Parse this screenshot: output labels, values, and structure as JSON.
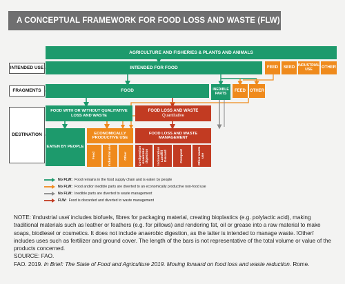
{
  "title": "A CONCEPTUAL FRAMEWORK FOR FOOD LOSS AND WASTE (FLW)",
  "row_labels": {
    "intended_use": "INTENDED USE",
    "fragments": "FRAGMENTS",
    "destination": "DESTINATION"
  },
  "top": "AGRICULTURE AND FISHERIES & PLANTS AND ANIMALS",
  "intended_use": {
    "food": "INTENDED FOR FOOD",
    "feed": "FEED",
    "seed": "SEED",
    "industrial": "INDUSTRIAL USE",
    "other": "OTHER"
  },
  "fragments": {
    "food": "FOOD",
    "inedible": "INEDIBLE PARTS",
    "feed": "FEED",
    "other": "OTHER"
  },
  "destination": {
    "food_with_loss": "FOOD WITH OR WITHOUT QUALITATIVE LOSS AND WASTE",
    "flw_quantitative_title": "FOOD LOSS AND WASTE",
    "flw_quantitative_sub": "Quantitative",
    "eaten": "EATEN BY PEOPLE",
    "productive": "ECONOMICALLY PRODUCTIVE USE",
    "management": "FOOD LOSS AND WASTE MANAGEMENT",
    "productive_items": [
      "Feed",
      "Industrial use",
      "Other"
    ],
    "management_items": [
      "Co-digestion Anaerobic digestion",
      "Incineration Landfill Discard",
      "Compost",
      "Other waste use"
    ]
  },
  "legend": [
    {
      "prefix": "No FLW:",
      "text": "Food remains in the food supply chain and is eaten by people",
      "color": "#1d9a6c"
    },
    {
      "prefix": "No FLW:",
      "text": "Food and/or inedible parts are diverted to an economically productive non-food use",
      "color": "#ef8a1c"
    },
    {
      "prefix": "No FLW:",
      "text": "Inedible parts are diverted to waste management",
      "color": "#8a8a8a"
    },
    {
      "prefix": "FLW:",
      "text": "Food is discarded and diverted to waste management",
      "color": "#c23b22"
    }
  ],
  "note": "NOTE: ïIndustrial useï includes biofuels, fibres for packaging material, creating bioplastics (e.g. polylactic acid), making traditional materials such as leather or feathers (e.g. for pillows) and rendering fat, oil or grease into a raw material to make soaps, biodiesel or cosmetics. It does not include anaerobic digestion, as the latter is intended to manage waste. ïOtherï includes uses such as fertilizer and ground cover. The length of the bars is not representative of the total volume or value of the products concerned.",
  "source_label": "SOURCE: FAO.",
  "citation_prefix": "FAO. 2019.",
  "citation_title": "In Brief: The State of Food and Agriculture 2019. Moving forward on food loss and waste reduction.",
  "citation_suffix": "Rome."
}
